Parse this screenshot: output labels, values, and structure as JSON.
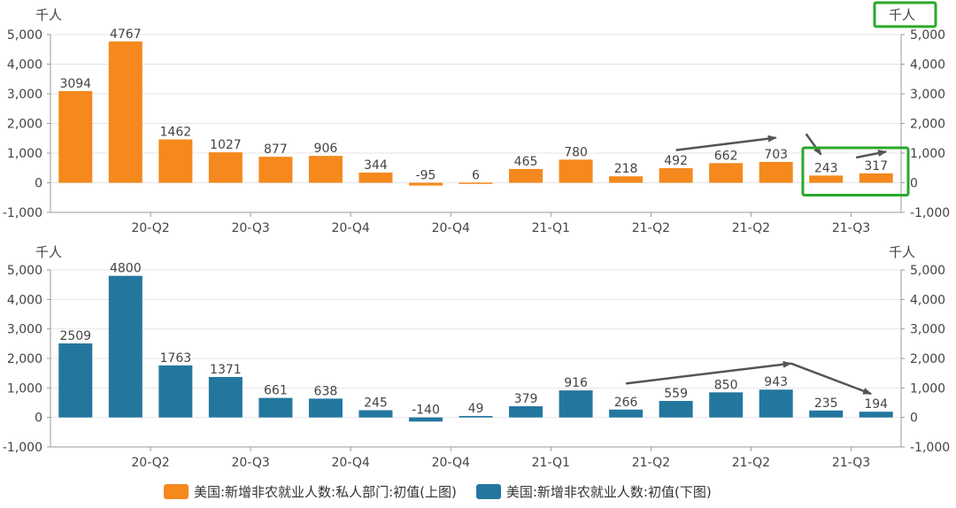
{
  "colors": {
    "top_bar": "#f5891d",
    "bottom_bar": "#23779f",
    "grid": "#e4e4e4",
    "axis": "#9a9a9a",
    "label": "#444444",
    "arrow": "#555555",
    "highlight": "#2aa82a"
  },
  "chart_data": [
    {
      "type": "bar",
      "panel": "top",
      "series": [
        {
          "name": "美国:新增非农就业人数:私人部门:初值(上图)",
          "values": [
            3094,
            4767,
            1462,
            1027,
            877,
            906,
            344,
            -95,
            6,
            465,
            780,
            218,
            492,
            662,
            703,
            243,
            317
          ]
        }
      ],
      "ylabel_left": "千人",
      "ylabel_right": "千人",
      "ylim": [
        -1000,
        5000
      ],
      "yticks": [
        -1000,
        0,
        1000,
        2000,
        3000,
        4000,
        5000
      ],
      "ytick_labels": [
        "-1,000",
        "0",
        "1,000",
        "2,000",
        "3,000",
        "4,000",
        "5,000"
      ],
      "right_ytick_labels": [
        "-1,000",
        "0",
        "1,000",
        "2,000",
        "3,000",
        "4,000",
        "5,000"
      ],
      "xtick_labels": [
        "20-Q2",
        "20-Q3",
        "20-Q4",
        "20-Q4",
        "21-Q1",
        "21-Q2",
        "21-Q2",
        "21-Q3"
      ],
      "xtick_after_bar": [
        1,
        3,
        5,
        7,
        9,
        11,
        13,
        15
      ],
      "grid": true,
      "annotations": [
        {
          "type": "arrow",
          "from_bar": 12,
          "from_value": 1100,
          "to_bar": 14,
          "to_value": 1520
        },
        {
          "type": "arrow",
          "from_bar": 14.6,
          "from_value": 1650,
          "to_bar": 14.9,
          "to_value": 950
        },
        {
          "type": "arrow",
          "from_bar": 15.6,
          "from_value": 850,
          "to_bar": 16.2,
          "to_value": 1050
        },
        {
          "type": "highlight_box",
          "from_bar": 15,
          "to_bar": 16,
          "label": "green box around 243 and 317"
        },
        {
          "type": "highlight_box",
          "label": "green box around right axis unit",
          "target": "right_unit"
        }
      ]
    },
    {
      "type": "bar",
      "panel": "bottom",
      "series": [
        {
          "name": "美国:新增非农就业人数:初值(下图)",
          "values": [
            2509,
            4800,
            1763,
            1371,
            661,
            638,
            245,
            -140,
            49,
            379,
            916,
            266,
            559,
            850,
            943,
            235,
            194
          ]
        }
      ],
      "ylabel_left": "千人",
      "ylabel_right": "千人",
      "ylim": [
        -1000,
        5000
      ],
      "yticks": [
        -1000,
        0,
        1000,
        2000,
        3000,
        4000,
        5000
      ],
      "ytick_labels": [
        "-1,000",
        "0",
        "1,000",
        "2,000",
        "3,000",
        "4,000",
        "5,000"
      ],
      "right_ytick_labels": [
        "-1,000",
        "0",
        "1,000",
        "2,000",
        "3,000",
        "4,000",
        "5,000"
      ],
      "xtick_labels": [
        "20-Q2",
        "20-Q3",
        "20-Q4",
        "20-Q4",
        "21-Q1",
        "21-Q2",
        "21-Q2",
        "21-Q3"
      ],
      "xtick_after_bar": [
        1,
        3,
        5,
        7,
        9,
        11,
        13,
        15
      ],
      "grid": true,
      "annotations": [
        {
          "type": "arrow",
          "from_bar": 11,
          "from_value": 1150,
          "to_bar": 14.3,
          "to_value": 1830
        },
        {
          "type": "arrow",
          "from_bar": 14.3,
          "from_value": 1830,
          "to_bar": 15.9,
          "to_value": 800
        }
      ]
    }
  ],
  "legend": [
    {
      "label": "美国:新增非农就业人数:私人部门:初值(上图)",
      "color": "#f5891d"
    },
    {
      "label": "美国:新增非农就业人数:初值(下图)",
      "color": "#23779f"
    }
  ]
}
